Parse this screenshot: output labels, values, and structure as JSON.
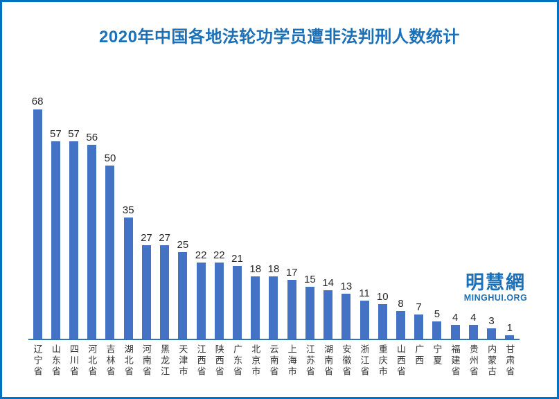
{
  "frame": {
    "border_color": "#0070C0",
    "background": "#FFFFFF"
  },
  "chart_data": {
    "type": "bar",
    "title": "2020年中国各地法轮功学员遭非法判刑人数统计",
    "categories": [
      "辽宁省",
      "山东省",
      "四川省",
      "河北省",
      "吉林省",
      "湖北省",
      "河南省",
      "黑龙江",
      "天津市",
      "江西省",
      "陕西省",
      "广东省",
      "北京市",
      "云南省",
      "上海市",
      "江苏省",
      "湖南省",
      "安徽省",
      "浙江省",
      "重庆市",
      "山西省",
      "广西",
      "宁夏",
      "福建省",
      "贵州省",
      "内蒙古",
      "甘肃省"
    ],
    "values": [
      68,
      57,
      57,
      56,
      50,
      35,
      27,
      27,
      25,
      22,
      22,
      21,
      18,
      18,
      17,
      15,
      14,
      13,
      11,
      10,
      8,
      7,
      5,
      4,
      4,
      3,
      1
    ],
    "xlabel": "",
    "ylabel": "",
    "ylim": [
      0,
      70
    ],
    "grid": false,
    "legend": false,
    "data_labels": true,
    "colors": {
      "bar": "#4472C4",
      "axis_line": "#2E75B6",
      "title": "#1C70B8",
      "value_label": "#262626",
      "category_label": "#333333"
    }
  },
  "watermark": {
    "cn": "明慧網",
    "en": "MINGHUI.ORG",
    "color": "#1C70B8"
  }
}
